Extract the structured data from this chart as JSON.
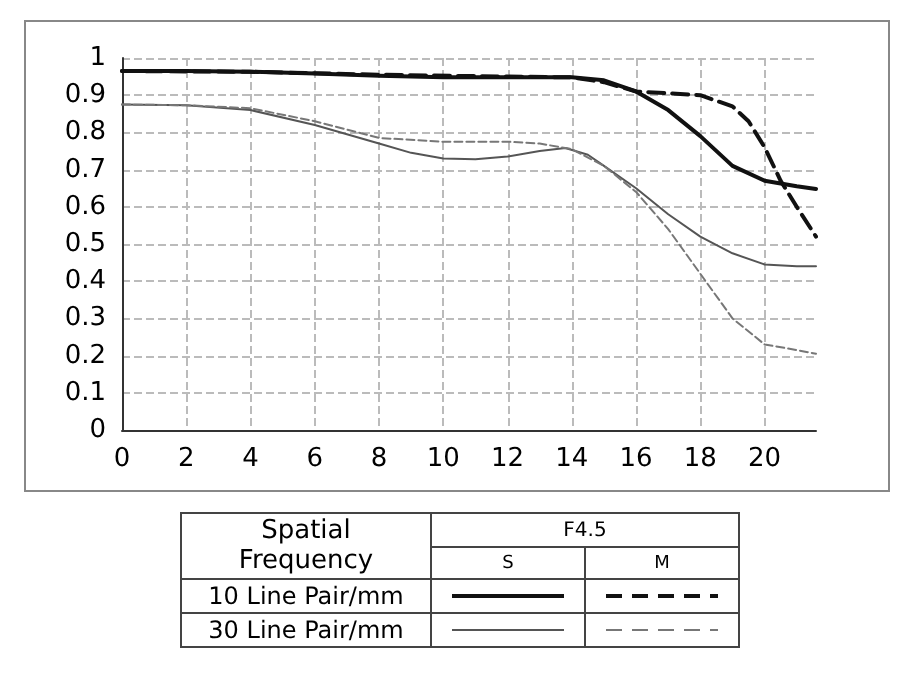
{
  "chart_data": {
    "type": "line",
    "xlim": [
      0,
      21.6
    ],
    "xticks": [
      0,
      2,
      4,
      6,
      8,
      10,
      12,
      14,
      16,
      18,
      20
    ],
    "ylim": [
      0,
      1
    ],
    "yticks": [
      0,
      0.1,
      0.2,
      0.3,
      0.4,
      0.5,
      0.6,
      0.7,
      0.8,
      0.9,
      1
    ],
    "grid": true,
    "marker": "none",
    "series": [
      {
        "color": "#111111",
        "line_style": "solid",
        "x": [
          0,
          2,
          4,
          6,
          8,
          10,
          12,
          14,
          15,
          16,
          17,
          18,
          19,
          20,
          21,
          21.6
        ],
        "values": [
          0.965,
          0.965,
          0.963,
          0.958,
          0.952,
          0.948,
          0.948,
          0.948,
          0.94,
          0.91,
          0.86,
          0.79,
          0.71,
          0.67,
          0.655,
          0.648
        ]
      },
      {
        "color": "#111111",
        "line_style": "dashed",
        "x": [
          0,
          4,
          8,
          12,
          14,
          15,
          16,
          17,
          18,
          19,
          19.5,
          20,
          20.5,
          21,
          21.6
        ],
        "values": [
          0.965,
          0.963,
          0.955,
          0.95,
          0.948,
          0.935,
          0.91,
          0.905,
          0.9,
          0.87,
          0.83,
          0.76,
          0.67,
          0.6,
          0.52
        ]
      },
      {
        "color": "#555555",
        "line_style": "solid",
        "x": [
          0,
          2,
          4,
          6,
          8,
          9,
          10,
          11,
          12,
          13,
          13.8,
          14.5,
          15,
          16,
          17,
          18,
          19,
          20,
          21,
          21.6
        ],
        "values": [
          0.875,
          0.873,
          0.86,
          0.82,
          0.77,
          0.745,
          0.73,
          0.728,
          0.735,
          0.75,
          0.758,
          0.74,
          0.71,
          0.65,
          0.58,
          0.52,
          0.475,
          0.445,
          0.44,
          0.44
        ]
      },
      {
        "color": "#777777",
        "line_style": "dashed",
        "x": [
          0,
          2,
          4,
          6,
          8,
          10,
          12,
          13,
          14,
          15,
          16,
          17,
          18,
          19,
          20,
          21,
          21.6
        ],
        "values": [
          0.875,
          0.873,
          0.865,
          0.83,
          0.785,
          0.775,
          0.775,
          0.77,
          0.755,
          0.71,
          0.64,
          0.54,
          0.42,
          0.3,
          0.23,
          0.215,
          0.205
        ]
      }
    ],
    "annotations": [
      "Spatial Frequency",
      "F4.5",
      "S",
      "M",
      "10 Line Pair/mm",
      "30 Line Pair/mm"
    ]
  }
}
